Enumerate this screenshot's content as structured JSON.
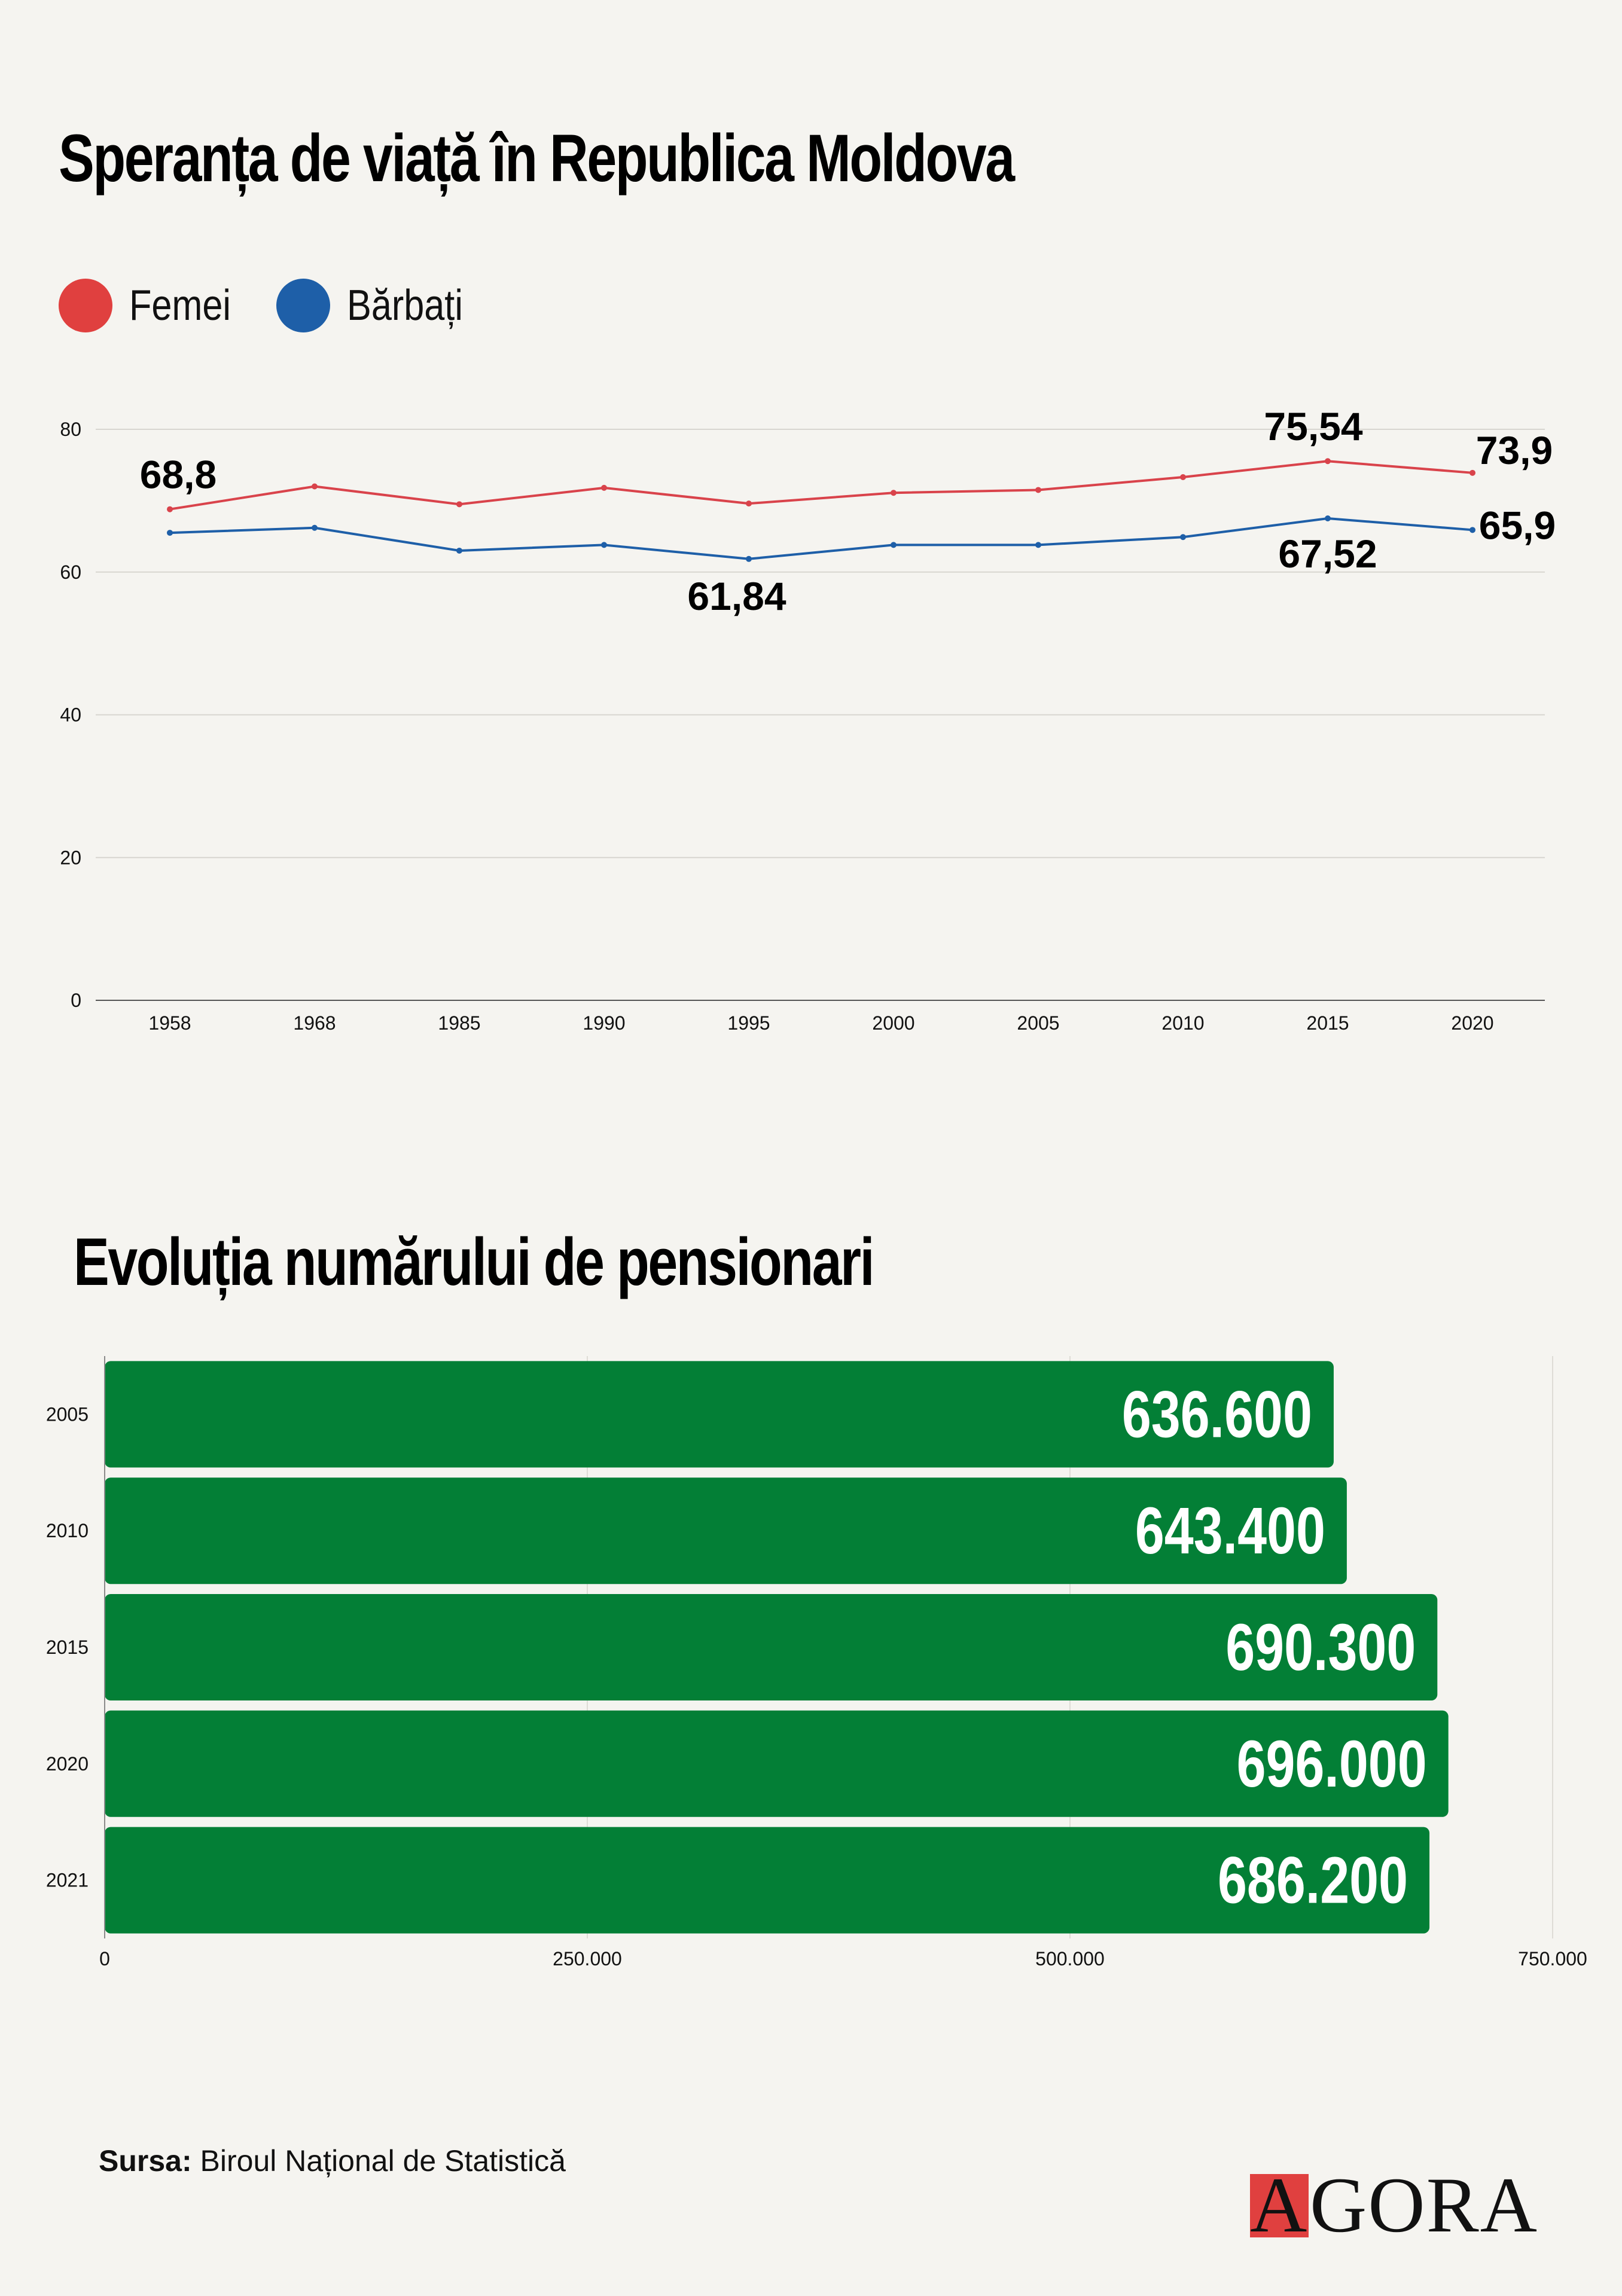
{
  "header": {
    "title1": "Speranța de viață în Republica Moldova",
    "title2": "Evoluția numărului de pensionari"
  },
  "legend": [
    {
      "label": "Femei",
      "color": "#e0403f"
    },
    {
      "label": "Bărbați",
      "color": "#1e5fa8"
    }
  ],
  "footer": {
    "source_label": "Sursa:",
    "source_text": "Biroul Național de Statistică",
    "logo_first": "A",
    "logo_rest": "GORA"
  },
  "chart_data": [
    {
      "type": "line",
      "title": "Speranța de viață în Republica Moldova",
      "x": [
        "1958",
        "1968",
        "1985",
        "1990",
        "1995",
        "2000",
        "2005",
        "2010",
        "2015",
        "2020"
      ],
      "series": [
        {
          "name": "Femei",
          "color": "#d9434b",
          "values": [
            68.8,
            72.0,
            69.5,
            71.8,
            69.6,
            71.1,
            71.5,
            73.3,
            75.54,
            73.9
          ]
        },
        {
          "name": "Bărbați",
          "color": "#1e5fa8",
          "values": [
            65.5,
            66.2,
            63.0,
            63.8,
            61.84,
            63.8,
            63.8,
            64.9,
            67.52,
            65.9
          ]
        }
      ],
      "ylim": [
        0,
        80
      ],
      "yticks": [
        0,
        20,
        40,
        60,
        80
      ],
      "grid": true,
      "legend_position": "top-left",
      "annotations": [
        {
          "series": "Femei",
          "x": "1958",
          "text": "68,8"
        },
        {
          "series": "Femei",
          "x": "2015",
          "text": "75,54"
        },
        {
          "series": "Femei",
          "x": "2020",
          "text": "73,9"
        },
        {
          "series": "Bărbați",
          "x": "1995",
          "text": "61,84"
        },
        {
          "series": "Bărbați",
          "x": "2015",
          "text": "67,52"
        },
        {
          "series": "Bărbați",
          "x": "2020",
          "text": "65,9"
        }
      ]
    },
    {
      "type": "bar",
      "orientation": "horizontal",
      "title": "Evoluția numărului de pensionari",
      "categories": [
        "2005",
        "2010",
        "2015",
        "2020",
        "2021"
      ],
      "values": [
        636600,
        643400,
        690300,
        696000,
        686200
      ],
      "value_labels": [
        "636.600",
        "643.400",
        "690.300",
        "696.000",
        "686.200"
      ],
      "color": "#037f36",
      "xlim": [
        0,
        750000
      ],
      "xticks": [
        0,
        250000,
        500000,
        750000
      ],
      "xtick_labels": [
        "0",
        "250.000",
        "500.000",
        "750.000"
      ],
      "grid": true
    }
  ]
}
